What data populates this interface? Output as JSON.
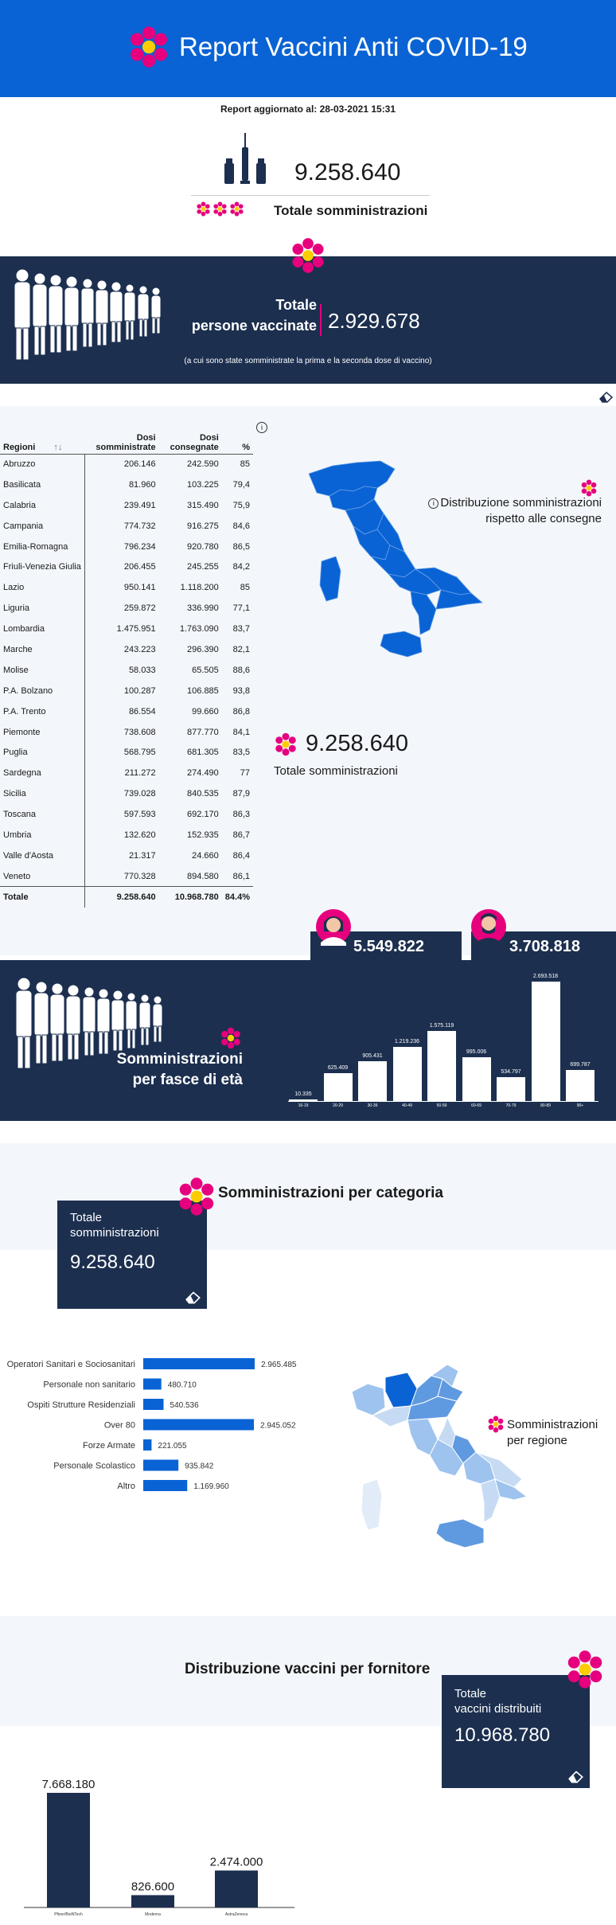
{
  "header": {
    "title": "Report Vaccini Anti COVID-19"
  },
  "updated": "Report aggiornato al: 28-03-2021 15:31",
  "summary": {
    "total_value": "9.258.640",
    "total_label": "Totale somministrazioni"
  },
  "vaccinated": {
    "title_line1": "Totale",
    "title_line2": "persone vaccinate",
    "value": "2.929.678",
    "note": "(a cui sono state somministrate la prima e la seconda dose di vaccino)"
  },
  "regions_table": {
    "headers": [
      "Regioni",
      "Dosi somministrate",
      "Dosi consegnate",
      "%"
    ],
    "rows": [
      [
        "Abruzzo",
        "206.146",
        "242.590",
        "85"
      ],
      [
        "Basilicata",
        "81.960",
        "103.225",
        "79,4"
      ],
      [
        "Calabria",
        "239.491",
        "315.490",
        "75,9"
      ],
      [
        "Campania",
        "774.732",
        "916.275",
        "84,6"
      ],
      [
        "Emilia-Romagna",
        "796.234",
        "920.780",
        "86,5"
      ],
      [
        "Friuli-Venezia Giulia",
        "206.455",
        "245.255",
        "84,2"
      ],
      [
        "Lazio",
        "950.141",
        "1.118.200",
        "85"
      ],
      [
        "Liguria",
        "259.872",
        "336.990",
        "77,1"
      ],
      [
        "Lombardia",
        "1.475.951",
        "1.763.090",
        "83,7"
      ],
      [
        "Marche",
        "243.223",
        "296.390",
        "82,1"
      ],
      [
        "Molise",
        "58.033",
        "65.505",
        "88,6"
      ],
      [
        "P.A. Bolzano",
        "100.287",
        "106.885",
        "93,8"
      ],
      [
        "P.A. Trento",
        "86.554",
        "99.660",
        "86,8"
      ],
      [
        "Piemonte",
        "738.608",
        "877.770",
        "84,1"
      ],
      [
        "Puglia",
        "568.795",
        "681.305",
        "83,5"
      ],
      [
        "Sardegna",
        "211.272",
        "274.490",
        "77"
      ],
      [
        "Sicilia",
        "739.028",
        "840.535",
        "87,9"
      ],
      [
        "Toscana",
        "597.593",
        "692.170",
        "86,3"
      ],
      [
        "Umbria",
        "132.620",
        "152.935",
        "86,7"
      ],
      [
        "Valle d'Aosta",
        "21.317",
        "24.660",
        "86,4"
      ],
      [
        "Veneto",
        "770.328",
        "894.580",
        "86,1"
      ]
    ],
    "total": [
      "Totale",
      "9.258.640",
      "10.968.780",
      "84.4%"
    ]
  },
  "distribution": {
    "title": "Distribuzione somministrazioni rispetto alle consegne",
    "info_icon": "i",
    "total_value": "9.258.640",
    "total_label": "Totale somministrazioni"
  },
  "gender": {
    "women": "5.549.822",
    "men": "3.708.818"
  },
  "age": {
    "title_line1": "Somministrazioni",
    "title_line2": "per fasce di età"
  },
  "category": {
    "title": "Somministrazioni per categoria",
    "card_label_line1": "Totale",
    "card_label_line2": "somministrazioni",
    "card_value": "9.258.640"
  },
  "regions_map": {
    "title_line1": "Somministrazioni",
    "title_line2": "per regione"
  },
  "supplier": {
    "title": "Distribuzione vaccini per fornitore",
    "card_label_line1": "Totale",
    "card_label_line2": "vaccini distribuiti",
    "card_value": "10.968.780"
  },
  "colors": {
    "brand_blue": "#0a63d4",
    "navy": "#1c2f4f",
    "accent_pink": "#e6007e",
    "bar_blue": "#0a63d4"
  },
  "chart_data": [
    {
      "type": "bar",
      "categories": [
        "16-19",
        "20-29",
        "30-39",
        "40-49",
        "50-59",
        "60-69",
        "70-79",
        "80-89",
        "90+"
      ],
      "values": [
        10335,
        625409,
        905431,
        1219236,
        1575119,
        995006,
        534797,
        2693518,
        699787
      ],
      "labels": [
        "10.335",
        "625.409",
        "905.431",
        "1.219.236",
        "1.575.119",
        "995.006",
        "534.797",
        "2.693.518",
        "699.787"
      ]
    },
    {
      "type": "bar",
      "orientation": "horizontal",
      "categories": [
        "Operatori Sanitari e Sociosanitari",
        "Personale non sanitario",
        "Ospiti Strutture Residenziali",
        "Over 80",
        "Forze Armate",
        "Personale Scolastico",
        "Altro"
      ],
      "values": [
        2965485,
        480710,
        540536,
        2945052,
        221055,
        935842,
        1169960
      ],
      "labels": [
        "2.965.485",
        "480.710",
        "540.536",
        "2.945.052",
        "221.055",
        "935.842",
        "1.169.960"
      ]
    },
    {
      "type": "bar",
      "categories": [
        "Pfizer/BioNTech",
        "Moderna",
        "AstraZeneca"
      ],
      "values": [
        7668180,
        826600,
        2474000
      ],
      "labels": [
        "7.668.180",
        "826.600",
        "2.474.000"
      ]
    }
  ]
}
